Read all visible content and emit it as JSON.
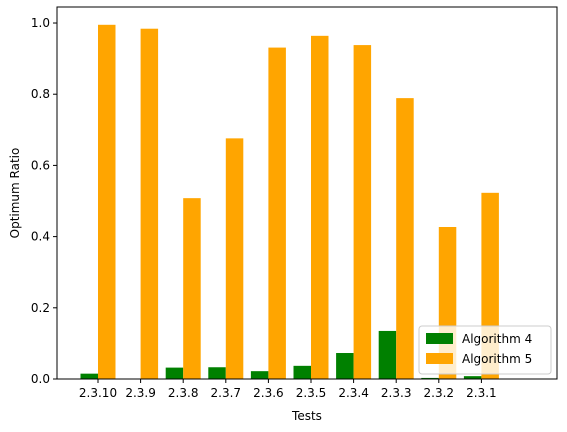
{
  "chart_data": {
    "type": "bar",
    "xlabel": "Tests",
    "ylabel": "Optimum Ratio",
    "categories": [
      "2.3.10",
      "2.3.9",
      "2.3.8",
      "2.3.7",
      "2.3.6",
      "2.3.5",
      "2.3.4",
      "2.3.3",
      "2.3.2",
      "2.3.1"
    ],
    "series": [
      {
        "name": "Algorithm 4",
        "color": "#008000",
        "values": [
          0.015,
          0.0,
          0.032,
          0.033,
          0.022,
          0.037,
          0.073,
          0.135,
          0.003,
          0.008
        ]
      },
      {
        "name": "Algorithm 5",
        "color": "#ffa500",
        "values": [
          0.995,
          0.984,
          0.508,
          0.676,
          0.931,
          0.964,
          0.938,
          0.789,
          0.427,
          0.523
        ]
      }
    ],
    "ylim": [
      0,
      1.045
    ],
    "yticks": [
      0.0,
      0.2,
      0.4,
      0.6,
      0.8,
      1.0
    ],
    "ytick_labels": [
      "0.0",
      "0.2",
      "0.4",
      "0.6",
      "0.8",
      "1.0"
    ],
    "grid": false,
    "legend_position": "lower-right"
  }
}
